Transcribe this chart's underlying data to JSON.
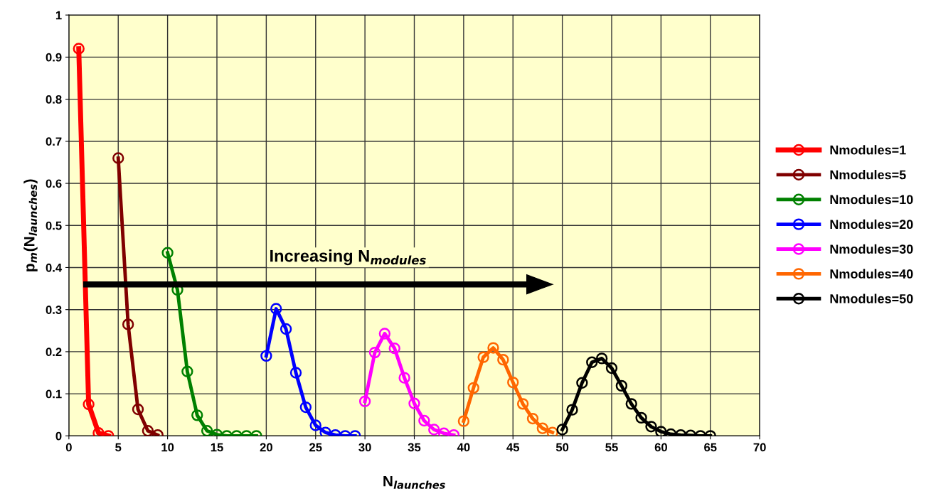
{
  "chart_data": {
    "type": "line",
    "xlabel": "N$_{launches}$",
    "ylabel": "p$_{m}$(N$_{launches}$)",
    "xlim": [
      0,
      70
    ],
    "xticks": [
      0,
      5,
      10,
      15,
      20,
      25,
      30,
      35,
      40,
      45,
      50,
      55,
      60,
      65,
      70
    ],
    "ylim": [
      0,
      1
    ],
    "yticks": [
      0,
      0.1,
      0.2,
      0.3,
      0.4,
      0.5,
      0.6,
      0.7,
      0.8,
      0.9,
      1
    ],
    "grid": true,
    "legend": "right",
    "marker": "circle",
    "line_style": "solid",
    "annotations": [
      "Increasing N$_{modules}$"
    ],
    "series": [
      {
        "name": "Nmodules=1",
        "color": "#ff0000",
        "x": [
          1,
          2,
          3,
          4
        ],
        "values": [
          0.92,
          0.075,
          0.007,
          0
        ]
      },
      {
        "name": "Nmodules=5",
        "color": "#800000",
        "x": [
          5,
          6,
          7,
          8,
          9
        ],
        "values": [
          0.66,
          0.265,
          0.063,
          0.012,
          0.002
        ]
      },
      {
        "name": "Nmodules=10",
        "color": "#008000",
        "x": [
          10,
          11,
          12,
          13,
          14,
          15,
          16,
          17,
          18,
          19
        ],
        "values": [
          0.435,
          0.347,
          0.153,
          0.049,
          0.012,
          0.003,
          0,
          0,
          0,
          0
        ]
      },
      {
        "name": "Nmodules=20",
        "color": "#0000ff",
        "x": [
          20,
          21,
          22,
          23,
          24,
          25,
          26,
          27,
          28,
          29
        ],
        "values": [
          0.19,
          0.302,
          0.254,
          0.15,
          0.068,
          0.025,
          0.008,
          0.002,
          0,
          0
        ]
      },
      {
        "name": "Nmodules=30",
        "color": "#ff00ff",
        "x": [
          30,
          31,
          32,
          33,
          34,
          35,
          36,
          37,
          38,
          39
        ],
        "values": [
          0.082,
          0.198,
          0.243,
          0.208,
          0.138,
          0.077,
          0.036,
          0.015,
          0.006,
          0.002
        ]
      },
      {
        "name": "Nmodules=40",
        "color": "#ff6600",
        "x": [
          40,
          41,
          42,
          43,
          44,
          45,
          46,
          47,
          48,
          49
        ],
        "values": [
          0.035,
          0.114,
          0.187,
          0.209,
          0.181,
          0.127,
          0.076,
          0.041,
          0.018,
          0.008
        ]
      },
      {
        "name": "Nmodules=50",
        "color": "#000000",
        "x": [
          50,
          51,
          52,
          53,
          54,
          55,
          56,
          57,
          58,
          59,
          60,
          61,
          62,
          63,
          64,
          65
        ],
        "values": [
          0.015,
          0.062,
          0.126,
          0.175,
          0.184,
          0.161,
          0.119,
          0.076,
          0.043,
          0.022,
          0.01,
          0.004,
          0.002,
          0.001,
          0,
          0
        ]
      }
    ]
  }
}
